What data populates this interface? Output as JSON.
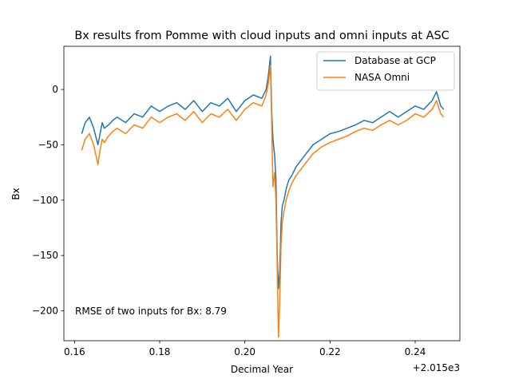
{
  "chart_data": {
    "type": "line",
    "title": "Bx results from Pomme with cloud inputs and omni inputs at ASC",
    "xlabel": "Decimal Year",
    "ylabel": "Bx",
    "x_offset_label": "+2.015e3",
    "xlim": [
      0.1575,
      0.2505
    ],
    "ylim": [
      -227,
      39
    ],
    "xticks": [
      0.16,
      0.18,
      0.2,
      0.22,
      0.24
    ],
    "xtick_labels": [
      "0.16",
      "0.18",
      "0.20",
      "0.22",
      "0.24"
    ],
    "yticks": [
      0,
      -50,
      -100,
      -150,
      -200
    ],
    "ytick_labels": [
      "0",
      "−50",
      "−100",
      "−150",
      "−200"
    ],
    "grid": false,
    "legend_position": "upper right",
    "annotation": "RMSE of two inputs for Bx: 8.79",
    "series": [
      {
        "name": "Database at GCP",
        "color": "#1f77b4",
        "x": [
          0.1617,
          0.1625,
          0.1635,
          0.1645,
          0.1655,
          0.166,
          0.1665,
          0.167,
          0.168,
          0.169,
          0.17,
          0.172,
          0.174,
          0.176,
          0.178,
          0.18,
          0.182,
          0.184,
          0.186,
          0.188,
          0.19,
          0.192,
          0.194,
          0.196,
          0.198,
          0.2,
          0.202,
          0.204,
          0.205,
          0.2055,
          0.206,
          0.2063,
          0.2066,
          0.207,
          0.2073,
          0.2076,
          0.2079,
          0.2082,
          0.2085,
          0.2088,
          0.2092,
          0.2097,
          0.2103,
          0.211,
          0.212,
          0.214,
          0.216,
          0.218,
          0.22,
          0.222,
          0.224,
          0.226,
          0.228,
          0.23,
          0.232,
          0.234,
          0.236,
          0.238,
          0.24,
          0.242,
          0.244,
          0.245,
          0.246,
          0.2467
        ],
        "y": [
          -40,
          -30,
          -25,
          -35,
          -50,
          -40,
          -30,
          -35,
          -32,
          -28,
          -25,
          -30,
          -22,
          -25,
          -15,
          -20,
          -15,
          -12,
          -18,
          -10,
          -20,
          -12,
          -15,
          -8,
          -20,
          -10,
          -5,
          -8,
          0,
          12,
          30,
          -20,
          -45,
          -60,
          -80,
          -150,
          -180,
          -165,
          -120,
          -105,
          -100,
          -90,
          -82,
          -78,
          -70,
          -60,
          -50,
          -45,
          -40,
          -38,
          -35,
          -32,
          -28,
          -30,
          -25,
          -20,
          -25,
          -20,
          -15,
          -18,
          -10,
          -2,
          -15,
          -18
        ]
      },
      {
        "name": "NASA Omni",
        "color": "#ff7f0e",
        "x": [
          0.1617,
          0.1625,
          0.1635,
          0.1645,
          0.1655,
          0.166,
          0.1665,
          0.167,
          0.168,
          0.169,
          0.17,
          0.172,
          0.174,
          0.176,
          0.178,
          0.18,
          0.182,
          0.184,
          0.186,
          0.188,
          0.19,
          0.192,
          0.194,
          0.196,
          0.198,
          0.2,
          0.202,
          0.204,
          0.205,
          0.2055,
          0.206,
          0.2063,
          0.2066,
          0.207,
          0.2073,
          0.2076,
          0.2079,
          0.2082,
          0.2085,
          0.2088,
          0.2092,
          0.2097,
          0.2103,
          0.211,
          0.212,
          0.214,
          0.216,
          0.218,
          0.22,
          0.222,
          0.224,
          0.226,
          0.228,
          0.23,
          0.232,
          0.234,
          0.236,
          0.238,
          0.24,
          0.242,
          0.244,
          0.245,
          0.246,
          0.2467
        ],
        "y": [
          -55,
          -45,
          -40,
          -50,
          -68,
          -55,
          -45,
          -48,
          -42,
          -38,
          -35,
          -40,
          -32,
          -35,
          -25,
          -30,
          -25,
          -22,
          -28,
          -20,
          -30,
          -22,
          -25,
          -18,
          -28,
          -18,
          -12,
          -15,
          -5,
          5,
          22,
          -30,
          -88,
          -75,
          -100,
          -160,
          -224,
          -190,
          -140,
          -120,
          -110,
          -100,
          -92,
          -85,
          -78,
          -68,
          -58,
          -52,
          -48,
          -45,
          -42,
          -38,
          -35,
          -37,
          -32,
          -28,
          -32,
          -28,
          -22,
          -25,
          -18,
          -10,
          -22,
          -25
        ]
      }
    ]
  }
}
